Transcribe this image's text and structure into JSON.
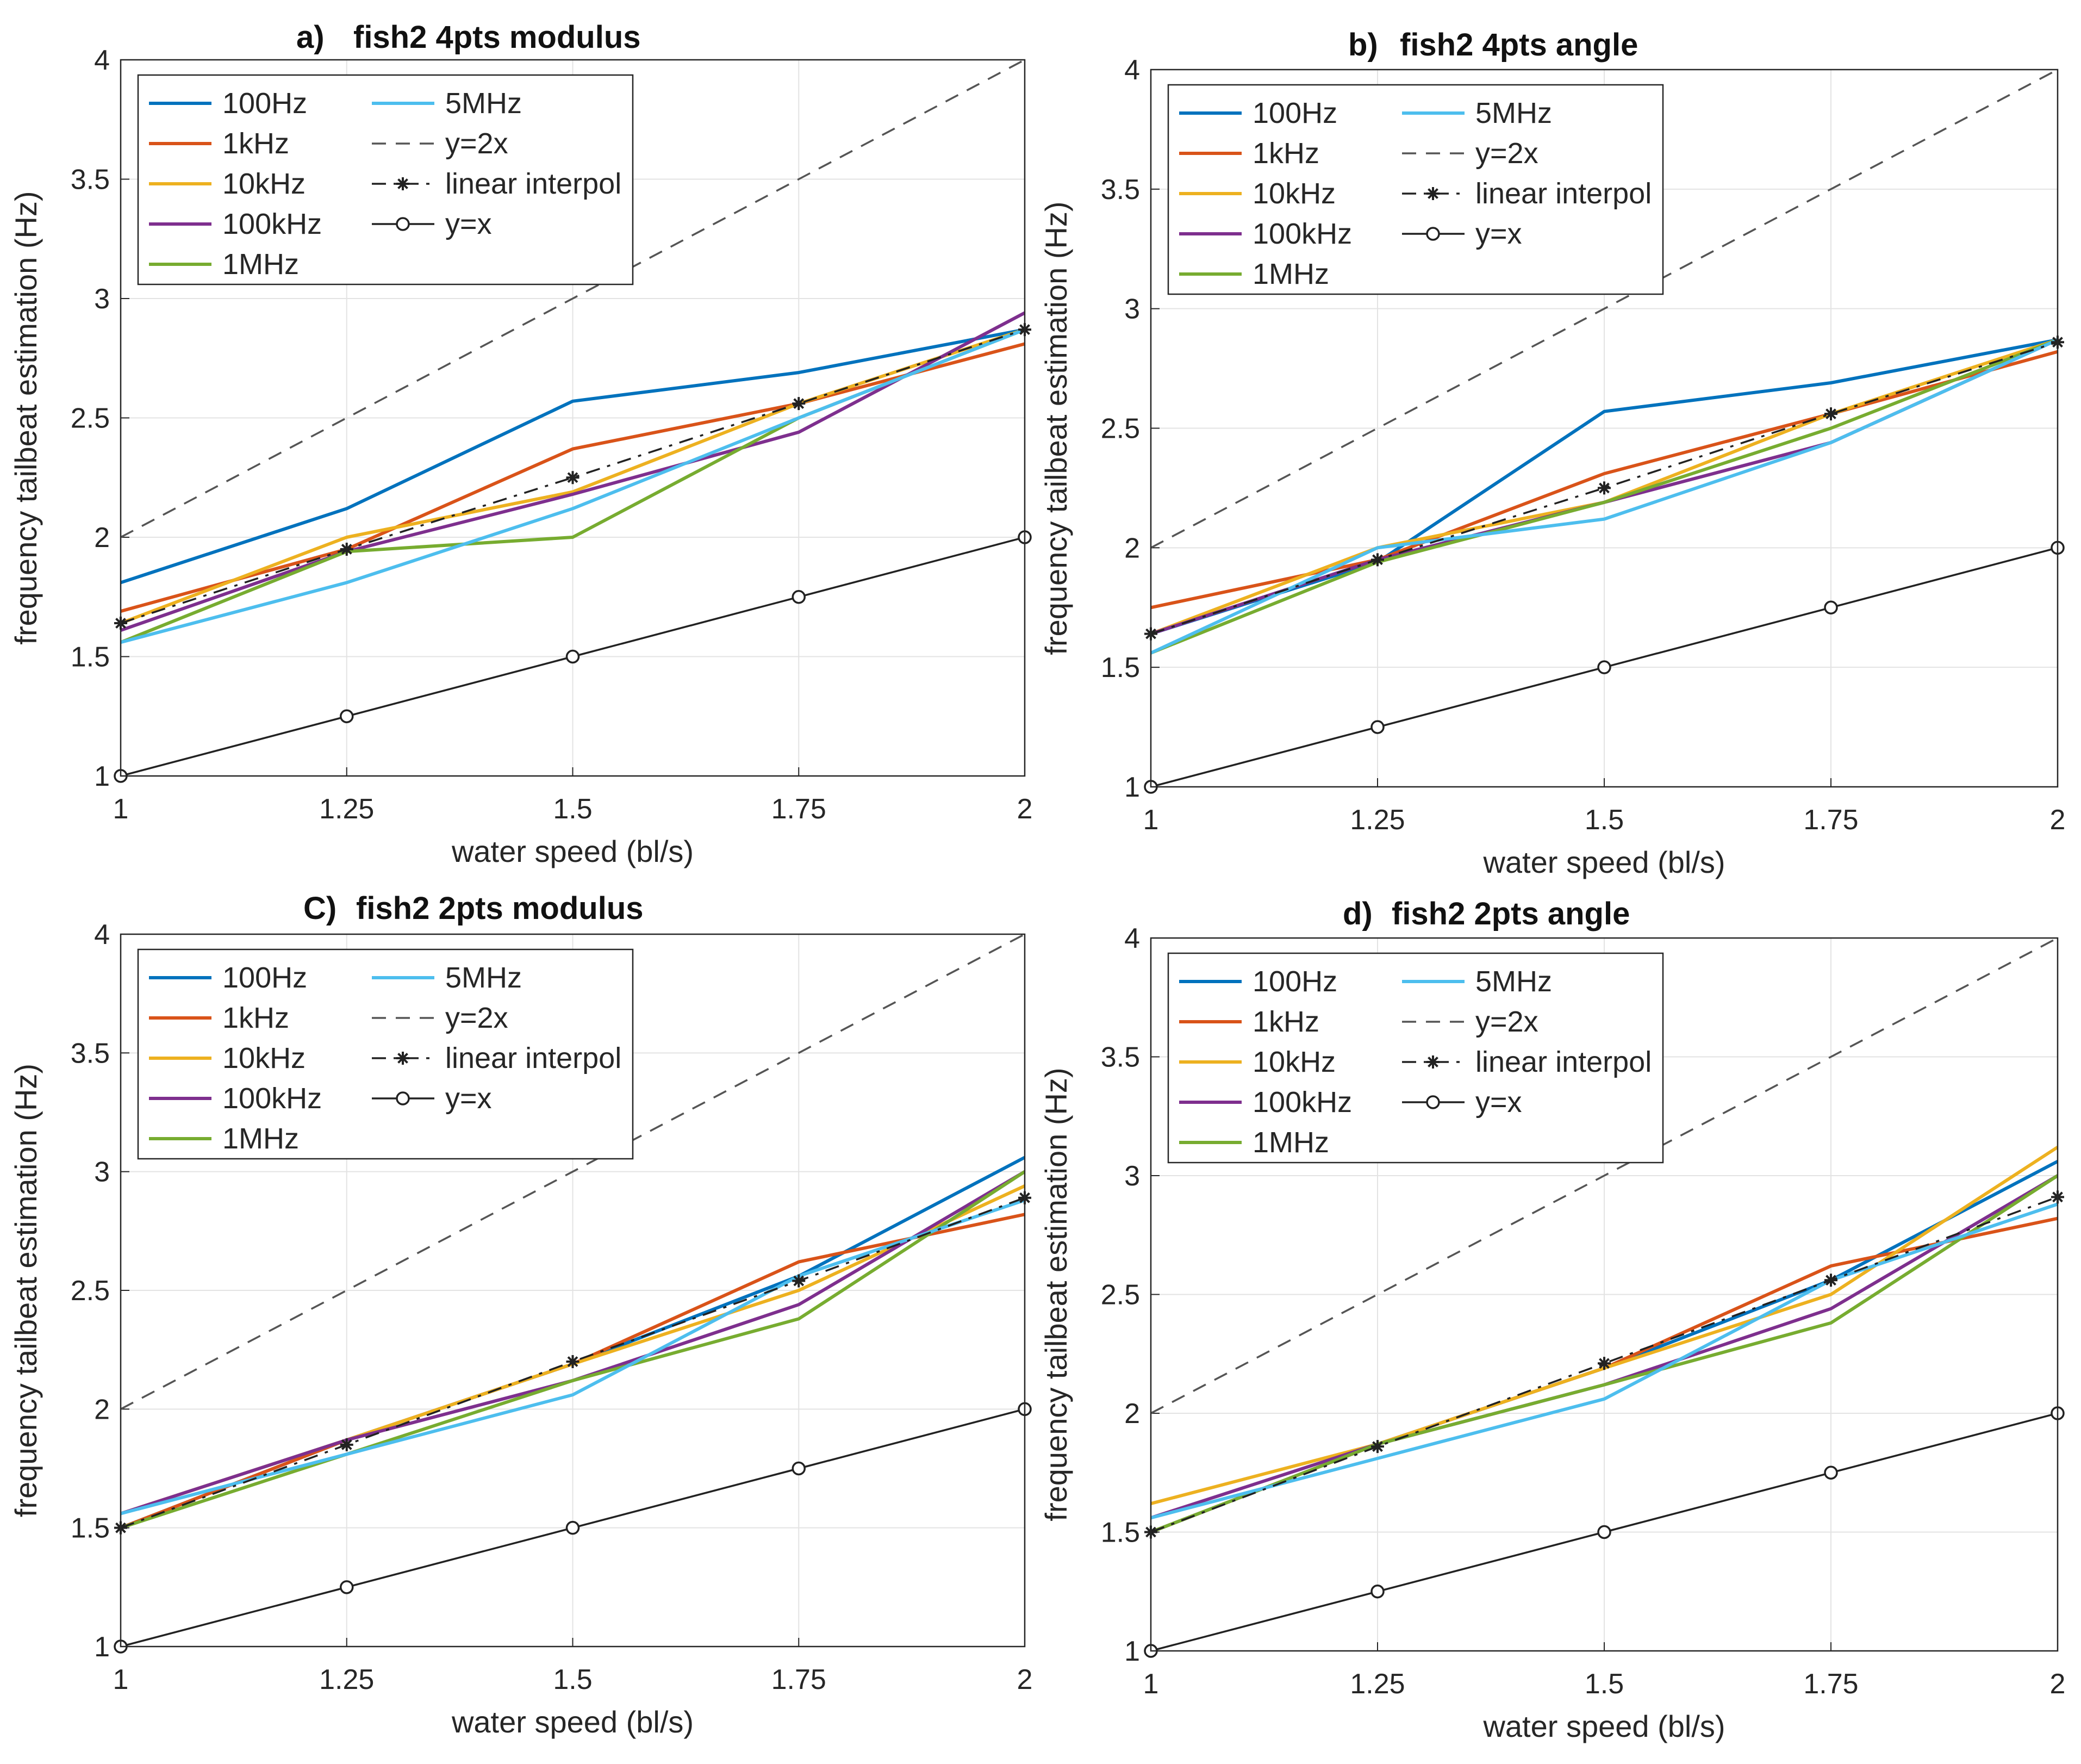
{
  "chart_data": [
    {
      "type": "line",
      "title": "fish2 4pts modulus",
      "panel_label": "a)",
      "xlabel": "water speed (bl/s)",
      "ylabel": "frequency tailbeat estimation (Hz)",
      "xlim": [
        1,
        2
      ],
      "ylim": [
        1,
        4
      ],
      "x_ticks": [
        "1",
        "1.25",
        "1.5",
        "1.75",
        "2"
      ],
      "y_ticks": [
        "1",
        "1.5",
        "2",
        "2.5",
        "3",
        "3.5",
        "4"
      ],
      "grid": true,
      "legend": "top-left",
      "x": [
        1,
        1.25,
        1.5,
        1.75,
        2
      ],
      "series": [
        {
          "name": "100Hz",
          "color": "#0072BD",
          "style": "solid",
          "marker": "none",
          "values": [
            1.81,
            2.12,
            2.57,
            2.69,
            2.87
          ]
        },
        {
          "name": "1kHz",
          "color": "#D95319",
          "style": "solid",
          "marker": "none",
          "values": [
            1.69,
            1.95,
            2.37,
            2.56,
            2.81
          ]
        },
        {
          "name": "10kHz",
          "color": "#EDB120",
          "style": "solid",
          "marker": "none",
          "values": [
            1.64,
            2.0,
            2.19,
            2.56,
            2.87
          ]
        },
        {
          "name": "100kHz",
          "color": "#7E2F8E",
          "style": "solid",
          "marker": "none",
          "values": [
            1.61,
            1.94,
            2.18,
            2.44,
            2.94
          ]
        },
        {
          "name": "1MHz",
          "color": "#77AC30",
          "style": "solid",
          "marker": "none",
          "values": [
            1.56,
            1.94,
            2.0,
            2.5,
            2.87
          ]
        },
        {
          "name": "5MHz",
          "color": "#4DBEEE",
          "style": "solid",
          "marker": "none",
          "values": [
            1.56,
            1.81,
            2.12,
            2.5,
            2.87
          ]
        },
        {
          "name": "y=2x",
          "color": "#555555",
          "style": "dashed",
          "marker": "none",
          "values": [
            2,
            2.5,
            3,
            3.5,
            4
          ]
        },
        {
          "name": "linear interpol",
          "color": "#222222",
          "style": "dashdot",
          "marker": "star",
          "values": [
            1.64,
            1.95,
            2.25,
            2.56,
            2.87
          ]
        },
        {
          "name": "y=x",
          "color": "#222222",
          "style": "solid",
          "marker": "circle",
          "values": [
            1,
            1.25,
            1.5,
            1.75,
            2
          ]
        }
      ]
    },
    {
      "type": "line",
      "title": "fish2 4pts angle",
      "panel_label": "b)",
      "xlabel": "water speed (bl/s)",
      "ylabel": "frequency tailbeat estimation (Hz)",
      "xlim": [
        1,
        2
      ],
      "ylim": [
        1,
        4
      ],
      "x_ticks": [
        "1",
        "1.25",
        "1.5",
        "1.75",
        "2"
      ],
      "y_ticks": [
        "1",
        "1.5",
        "2",
        "2.5",
        "3",
        "3.5",
        "4"
      ],
      "grid": true,
      "legend": "top-left",
      "x": [
        1,
        1.25,
        1.5,
        1.75,
        2
      ],
      "series": [
        {
          "name": "100Hz",
          "color": "#0072BD",
          "style": "solid",
          "marker": "none",
          "values": [
            1.64,
            1.94,
            2.57,
            2.69,
            2.87
          ]
        },
        {
          "name": "1kHz",
          "color": "#D95319",
          "style": "solid",
          "marker": "none",
          "values": [
            1.75,
            1.95,
            2.31,
            2.56,
            2.82
          ]
        },
        {
          "name": "10kHz",
          "color": "#EDB120",
          "style": "solid",
          "marker": "none",
          "values": [
            1.64,
            2.0,
            2.19,
            2.56,
            2.87
          ]
        },
        {
          "name": "100kHz",
          "color": "#7E2F8E",
          "style": "solid",
          "marker": "none",
          "values": [
            1.64,
            1.95,
            2.19,
            2.44,
            2.87
          ]
        },
        {
          "name": "1MHz",
          "color": "#77AC30",
          "style": "solid",
          "marker": "none",
          "values": [
            1.56,
            1.94,
            2.19,
            2.5,
            2.87
          ]
        },
        {
          "name": "5MHz",
          "color": "#4DBEEE",
          "style": "solid",
          "marker": "none",
          "values": [
            1.56,
            2.0,
            2.12,
            2.44,
            2.87
          ]
        },
        {
          "name": "y=2x",
          "color": "#555555",
          "style": "dashed",
          "marker": "none",
          "values": [
            2,
            2.5,
            3,
            3.5,
            4
          ]
        },
        {
          "name": "linear interpol",
          "color": "#222222",
          "style": "dashdot",
          "marker": "star",
          "values": [
            1.64,
            1.95,
            2.25,
            2.56,
            2.86
          ]
        },
        {
          "name": "y=x",
          "color": "#222222",
          "style": "solid",
          "marker": "circle",
          "values": [
            1,
            1.25,
            1.5,
            1.75,
            2
          ]
        }
      ]
    },
    {
      "type": "line",
      "title": "fish2 2pts modulus",
      "panel_label": "C)",
      "xlabel": "water speed (bl/s)",
      "ylabel": "frequency tailbeat estimation (Hz)",
      "xlim": [
        1,
        2
      ],
      "ylim": [
        1,
        4
      ],
      "x_ticks": [
        "1",
        "1.25",
        "1.5",
        "1.75",
        "2"
      ],
      "y_ticks": [
        "1",
        "1.5",
        "2",
        "2.5",
        "3",
        "3.5",
        "4"
      ],
      "grid": true,
      "legend": "top-left",
      "x": [
        1,
        1.25,
        1.5,
        1.75,
        2
      ],
      "series": [
        {
          "name": "100Hz",
          "color": "#0072BD",
          "style": "solid",
          "marker": "none",
          "values": [
            1.5,
            1.87,
            2.19,
            2.56,
            3.06
          ]
        },
        {
          "name": "1kHz",
          "color": "#D95319",
          "style": "solid",
          "marker": "none",
          "values": [
            1.5,
            1.87,
            2.19,
            2.62,
            2.82
          ]
        },
        {
          "name": "10kHz",
          "color": "#EDB120",
          "style": "solid",
          "marker": "none",
          "values": [
            1.56,
            1.87,
            2.19,
            2.5,
            2.94
          ]
        },
        {
          "name": "100kHz",
          "color": "#7E2F8E",
          "style": "solid",
          "marker": "none",
          "values": [
            1.56,
            1.87,
            2.12,
            2.44,
            3.0
          ]
        },
        {
          "name": "1MHz",
          "color": "#77AC30",
          "style": "solid",
          "marker": "none",
          "values": [
            1.5,
            1.81,
            2.12,
            2.38,
            3.0
          ]
        },
        {
          "name": "5MHz",
          "color": "#4DBEEE",
          "style": "solid",
          "marker": "none",
          "values": [
            1.56,
            1.81,
            2.06,
            2.56,
            2.88
          ]
        },
        {
          "name": "y=2x",
          "color": "#555555",
          "style": "dashed",
          "marker": "none",
          "values": [
            2,
            2.5,
            3,
            3.5,
            4
          ]
        },
        {
          "name": "linear interpol",
          "color": "#222222",
          "style": "dashdot",
          "marker": "star",
          "values": [
            1.5,
            1.85,
            2.2,
            2.54,
            2.89
          ]
        },
        {
          "name": "y=x",
          "color": "#222222",
          "style": "solid",
          "marker": "circle",
          "values": [
            1,
            1.25,
            1.5,
            1.75,
            2
          ]
        }
      ]
    },
    {
      "type": "line",
      "title": "fish2 2pts angle",
      "panel_label": "d)",
      "xlabel": "water speed (bl/s)",
      "ylabel": "frequency tailbeat estimation (Hz)",
      "xlim": [
        1,
        2
      ],
      "ylim": [
        1,
        4
      ],
      "x_ticks": [
        "1",
        "1.25",
        "1.5",
        "1.75",
        "2"
      ],
      "y_ticks": [
        "1",
        "1.5",
        "2",
        "2.5",
        "3",
        "3.5",
        "4"
      ],
      "grid": true,
      "legend": "top-left",
      "x": [
        1,
        1.25,
        1.5,
        1.75,
        2
      ],
      "series": [
        {
          "name": "100Hz",
          "color": "#0072BD",
          "style": "solid",
          "marker": "none",
          "values": [
            1.5,
            1.87,
            2.19,
            2.56,
            3.06
          ]
        },
        {
          "name": "1kHz",
          "color": "#D95319",
          "style": "solid",
          "marker": "none",
          "values": [
            1.5,
            1.87,
            2.19,
            2.62,
            2.82
          ]
        },
        {
          "name": "10kHz",
          "color": "#EDB120",
          "style": "solid",
          "marker": "none",
          "values": [
            1.62,
            1.87,
            2.19,
            2.5,
            3.12
          ]
        },
        {
          "name": "100kHz",
          "color": "#7E2F8E",
          "style": "solid",
          "marker": "none",
          "values": [
            1.56,
            1.87,
            2.12,
            2.44,
            3.0
          ]
        },
        {
          "name": "1MHz",
          "color": "#77AC30",
          "style": "solid",
          "marker": "none",
          "values": [
            1.5,
            1.87,
            2.12,
            2.38,
            3.0
          ]
        },
        {
          "name": "5MHz",
          "color": "#4DBEEE",
          "style": "solid",
          "marker": "none",
          "values": [
            1.56,
            1.81,
            2.06,
            2.56,
            2.88
          ]
        },
        {
          "name": "y=2x",
          "color": "#555555",
          "style": "dashed",
          "marker": "none",
          "values": [
            2,
            2.5,
            3,
            3.5,
            4
          ]
        },
        {
          "name": "linear interpol",
          "color": "#222222",
          "style": "dashdot",
          "marker": "star",
          "values": [
            1.5,
            1.86,
            2.21,
            2.56,
            2.91
          ]
        },
        {
          "name": "y=x",
          "color": "#222222",
          "style": "solid",
          "marker": "circle",
          "values": [
            1,
            1.25,
            1.5,
            1.75,
            2
          ]
        }
      ]
    }
  ]
}
